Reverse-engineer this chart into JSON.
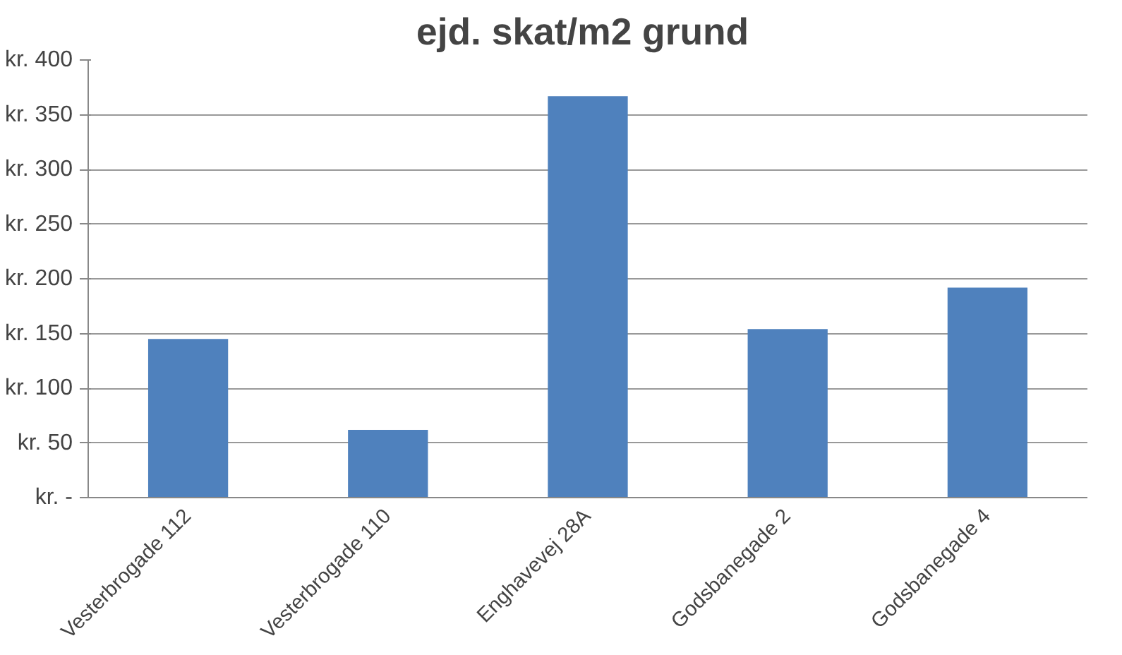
{
  "chart_data": {
    "type": "bar",
    "title": "ejd. skat/m2  grund",
    "categories": [
      "Vesterbrogade 112",
      "Vesterbrogade 110",
      "Enghavevej 28A",
      "Godsbanegade 2",
      "Godsbanegade 4"
    ],
    "values": [
      145,
      62,
      367,
      154,
      192
    ],
    "color": "#4f81bd",
    "ylim": [
      0,
      400
    ],
    "yticks": [
      {
        "value": 0,
        "label": "kr. -"
      },
      {
        "value": 50,
        "label": "kr. 50"
      },
      {
        "value": 100,
        "label": "kr. 100"
      },
      {
        "value": 150,
        "label": "kr. 150"
      },
      {
        "value": 200,
        "label": "kr. 200"
      },
      {
        "value": 250,
        "label": "kr. 250"
      },
      {
        "value": 300,
        "label": "kr. 300"
      },
      {
        "value": 350,
        "label": "kr. 350"
      },
      {
        "value": 400,
        "label": "kr. 400"
      }
    ],
    "grid": "y"
  }
}
